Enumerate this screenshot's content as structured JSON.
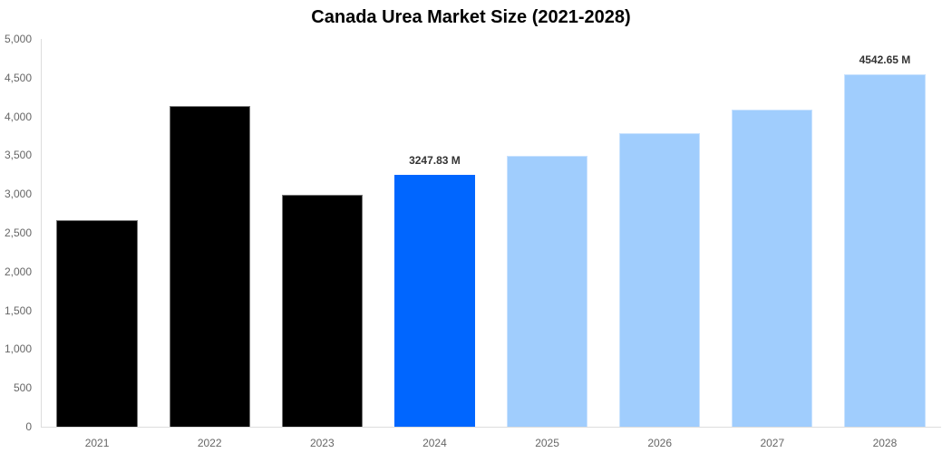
{
  "chart_data": {
    "type": "bar",
    "title": "Canada Urea Market Size (2021-2028)",
    "xlabel": "",
    "ylabel": "",
    "ylim": [
      0,
      5000
    ],
    "grid": false,
    "legend": null,
    "categories": [
      "2021",
      "2022",
      "2023",
      "2024",
      "2025",
      "2026",
      "2027",
      "2028"
    ],
    "values": [
      2664,
      4136,
      2991,
      3247.83,
      3493,
      3785,
      4089,
      4542.65
    ],
    "bar_kinds": [
      "historical",
      "historical",
      "historical",
      "current",
      "forecast",
      "forecast",
      "forecast",
      "forecast"
    ],
    "yticks": [
      "0",
      "500",
      "1,000",
      "1,500",
      "2,000",
      "2,500",
      "3,000",
      "3,500",
      "4,000",
      "4,500",
      "5,000"
    ],
    "annotations": [
      {
        "category": "2024",
        "text": "3247.83 M"
      },
      {
        "category": "2028",
        "text": "4542.65 M"
      }
    ],
    "colors": {
      "historical": "#000000",
      "current": "#0066ff",
      "forecast": "#a0cdfd"
    }
  }
}
